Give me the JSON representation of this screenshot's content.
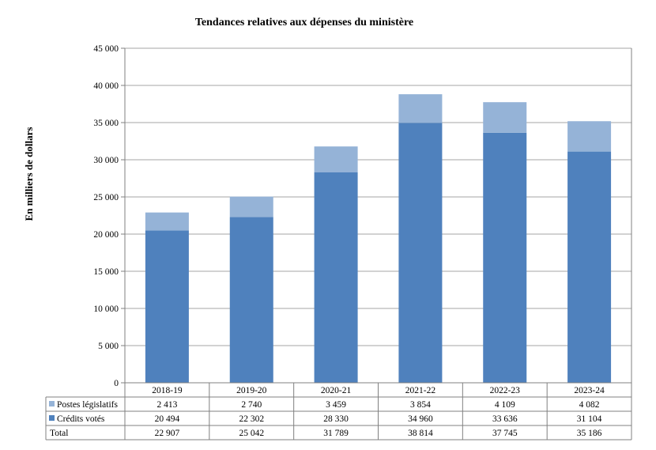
{
  "chart_data": {
    "type": "bar",
    "stacked": true,
    "title": "Tendances relatives aux dépenses du ministère",
    "ylabel": "En milliers de dollars",
    "xlabel": "",
    "ylim": [
      0,
      45000
    ],
    "yticks": [
      "0",
      "5 000",
      "10 000",
      "15 000",
      "20 000",
      "25 000",
      "30 000",
      "35 000",
      "40 000",
      "45 000"
    ],
    "ytick_values": [
      0,
      5000,
      10000,
      15000,
      20000,
      25000,
      30000,
      35000,
      40000,
      45000
    ],
    "grid": true,
    "categories": [
      "2018-19",
      "2019-20",
      "2020-21",
      "2021-22",
      "2022-23",
      "2023-24"
    ],
    "series": [
      {
        "name": "Crédits votés",
        "color": "#4f81bd",
        "values": [
          20494,
          22302,
          28330,
          34960,
          33636,
          31104
        ],
        "labels": [
          "20 494",
          "22 302",
          "28 330",
          "34 960",
          "33 636",
          "31 104"
        ]
      },
      {
        "name": "Postes législatifs",
        "color": "#95b3d7",
        "values": [
          2413,
          2740,
          3459,
          3854,
          4109,
          4082
        ],
        "labels": [
          "2 413",
          "2 740",
          "3 459",
          "3 854",
          "4 109",
          "4 082"
        ]
      }
    ],
    "data_table": {
      "rows": [
        {
          "label": "Postes législatifs",
          "series": 1
        },
        {
          "label": "Crédits votés",
          "series": 0
        },
        {
          "label": "Total",
          "values": [
            "22 907",
            "25 042",
            "31 789",
            "38 814",
            "37 745",
            "35 186"
          ]
        }
      ]
    }
  }
}
